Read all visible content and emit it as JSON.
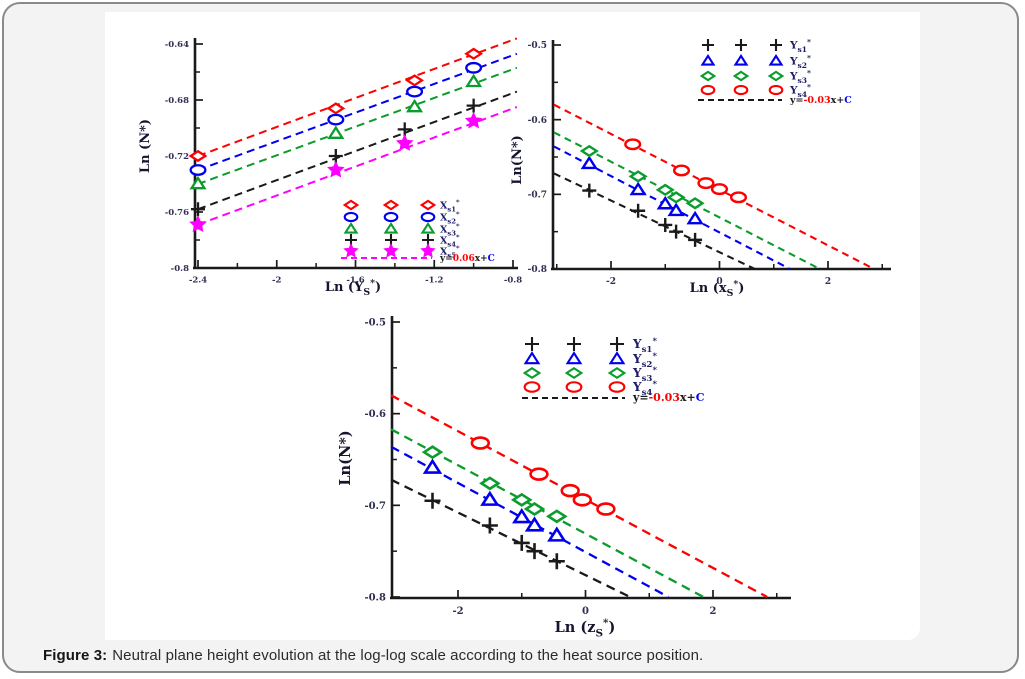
{
  "figure": {
    "caption_label": "Figure 3:",
    "caption_text": "Neutral plane height evolution at the log-log scale according to the heat source position."
  },
  "colors": {
    "red": "#fe0000",
    "blue": "#0000f0",
    "green": "#0a9c2c",
    "black": "#1a1a1a",
    "magenta": "#ff00ff",
    "axis_line": "#1a1a1a",
    "tick_text": "#2e2e52",
    "legend_text": "#1c1c66",
    "axis_label_text": "#151530",
    "card_bg": "#f2f3f2",
    "card_border": "#8a8a8a",
    "panel_bg": "#ffffff"
  },
  "chart_data": [
    {
      "type": "scatter",
      "title": "",
      "xlabel_parts": [
        [
          "Ln (Y"
        ],
        [
          "S",
          "sub"
        ],
        [
          "*",
          "sup"
        ],
        [
          ")"
        ]
      ],
      "ylabel": "Ln (N*)",
      "xlim": [
        -2.44,
        -0.76
      ],
      "ylim": [
        -0.8,
        -0.63
      ],
      "grid": false,
      "legend_position": "lower right",
      "xticks": {
        "major": [
          -2.4,
          -2,
          -1.6,
          -1.2,
          -0.8
        ],
        "labels": [
          "-2.4",
          "-2",
          "-1.6",
          "-1.2",
          "-0.8"
        ],
        "minor": [
          -2.2,
          -1.8,
          -1.4,
          -1.0
        ]
      },
      "yticks": {
        "major": [
          -0.64,
          -0.68,
          -0.72,
          -0.76,
          -0.8
        ],
        "labels": [
          "-0.64",
          "-0.68",
          "-0.72",
          "-0.76",
          "-0.8"
        ],
        "minor": [
          -0.66,
          -0.7,
          -0.74,
          -0.78
        ]
      },
      "series": [
        {
          "label_parts": [
            [
              "X"
            ],
            [
              "s1",
              "sub"
            ],
            [
              "*",
              "sup"
            ]
          ],
          "marker": "diamond",
          "color": "red",
          "x": [
            -2.4,
            -1.7,
            -1.3,
            -1.0
          ],
          "y": [
            -0.72,
            -0.686,
            -0.666,
            -0.647
          ],
          "trend": {
            "x": [
              -2.4,
              -0.78
            ],
            "y": [
              -0.72,
              -0.636
            ]
          }
        },
        {
          "label_parts": [
            [
              "X"
            ],
            [
              "s2",
              "sub"
            ],
            [
              "*",
              "sup"
            ]
          ],
          "marker": "ellipse",
          "color": "blue",
          "x": [
            -2.4,
            -1.7,
            -1.3,
            -1.0
          ],
          "y": [
            -0.73,
            -0.694,
            -0.674,
            -0.657
          ],
          "trend": {
            "x": [
              -2.4,
              -0.78
            ],
            "y": [
              -0.73,
              -0.647
            ]
          }
        },
        {
          "label_parts": [
            [
              "X"
            ],
            [
              "s3",
              "sub"
            ],
            [
              "*",
              "sup"
            ]
          ],
          "marker": "triangle",
          "color": "green",
          "x": [
            -2.4,
            -1.7,
            -1.3,
            -1.0
          ],
          "y": [
            -0.74,
            -0.704,
            -0.685,
            -0.667
          ],
          "trend": {
            "x": [
              -2.4,
              -0.78
            ],
            "y": [
              -0.74,
              -0.657
            ]
          }
        },
        {
          "label_parts": [
            [
              "X"
            ],
            [
              "s4",
              "sub"
            ],
            [
              "*",
              "sup"
            ]
          ],
          "marker": "plus",
          "color": "black",
          "x": [
            -2.4,
            -1.7,
            -1.35,
            -1.0
          ],
          "y": [
            -0.758,
            -0.72,
            -0.701,
            -0.684
          ],
          "trend": {
            "x": [
              -2.4,
              -0.78
            ],
            "y": [
              -0.758,
              -0.674
            ]
          }
        },
        {
          "label_parts": [
            [
              "X"
            ],
            [
              "s5",
              "sub"
            ],
            [
              "*",
              "sup"
            ]
          ],
          "marker": "star",
          "color": "magenta",
          "x": [
            -2.4,
            -1.7,
            -1.35,
            -1.0
          ],
          "y": [
            -0.769,
            -0.73,
            -0.711,
            -0.695
          ],
          "trend": {
            "x": [
              -2.4,
              -0.78
            ],
            "y": [
              -0.769,
              -0.685
            ]
          }
        }
      ],
      "equation": {
        "line_color": "magenta",
        "parts": [
          [
            "y=",
            "black"
          ],
          [
            "0.06",
            "red"
          ],
          [
            "x+",
            "black"
          ],
          [
            "C",
            "blue"
          ]
        ]
      }
    },
    {
      "type": "scatter",
      "title": "",
      "xlabel_parts": [
        [
          "Ln (x"
        ],
        [
          "S",
          "sub"
        ],
        [
          "*",
          "sup"
        ],
        [
          ")"
        ]
      ],
      "ylabel": "Ln(N*)",
      "xlim": [
        -3.1,
        3.15
      ],
      "ylim": [
        -0.8,
        -0.5
      ],
      "grid": false,
      "legend_position": "upper right",
      "xticks": {
        "major": [
          -2,
          0,
          2
        ],
        "labels": [
          "-2",
          "0",
          "2"
        ],
        "minor": [
          -3,
          -1,
          1,
          3
        ]
      },
      "yticks": {
        "major": [
          -0.5,
          -0.6,
          -0.7,
          -0.8
        ],
        "labels": [
          "-0.5",
          "-0.6",
          "-0.7",
          "-0.8"
        ],
        "minor": [
          -0.55,
          -0.65,
          -0.75
        ]
      },
      "series": [
        {
          "label_parts": [
            [
              "Y"
            ],
            [
              "s1",
              "sub"
            ],
            [
              "*",
              "sup"
            ]
          ],
          "marker": "plus",
          "color": "black",
          "x": [
            -2.4,
            -1.5,
            -1.0,
            -0.8,
            -0.45
          ],
          "y": [
            -0.695,
            -0.722,
            -0.741,
            -0.75,
            -0.761
          ],
          "trend": {
            "x": [
              -3.05,
              0.65
            ],
            "y": [
              -0.672,
              -0.8
            ]
          }
        },
        {
          "label_parts": [
            [
              "Y"
            ],
            [
              "s2",
              "sub"
            ],
            [
              "*",
              "sup"
            ]
          ],
          "marker": "triangle",
          "color": "blue",
          "x": [
            -2.4,
            -1.5,
            -1.0,
            -0.8,
            -0.45
          ],
          "y": [
            -0.659,
            -0.694,
            -0.713,
            -0.722,
            -0.733
          ],
          "trend": {
            "x": [
              -3.05,
              1.3
            ],
            "y": [
              -0.636,
              -0.8
            ]
          }
        },
        {
          "label_parts": [
            [
              "Y"
            ],
            [
              "s3",
              "sub"
            ],
            [
              "*",
              "sup"
            ]
          ],
          "marker": "diamond",
          "color": "green",
          "x": [
            -2.4,
            -1.5,
            -1.0,
            -0.8,
            -0.45
          ],
          "y": [
            -0.642,
            -0.676,
            -0.694,
            -0.704,
            -0.712
          ],
          "trend": {
            "x": [
              -3.05,
              1.85
            ],
            "y": [
              -0.617,
              -0.8
            ]
          }
        },
        {
          "label_parts": [
            [
              "Y"
            ],
            [
              "s4",
              "sub"
            ],
            [
              "*",
              "sup"
            ]
          ],
          "marker": "ellipse",
          "color": "red",
          "x": [
            -1.6,
            -0.7,
            -0.25,
            0.0,
            0.35
          ],
          "y": [
            -0.633,
            -0.668,
            -0.685,
            -0.693,
            -0.704
          ],
          "trend": {
            "x": [
              -3.05,
              2.85
            ],
            "y": [
              -0.58,
              -0.8
            ]
          }
        }
      ],
      "equation": {
        "line_color": "black",
        "parts": [
          [
            "y=",
            "black"
          ],
          [
            "-0.03",
            "red"
          ],
          [
            "x+",
            "black"
          ],
          [
            "C",
            "blue"
          ]
        ]
      }
    },
    {
      "type": "scatter",
      "title": "",
      "xlabel_parts": [
        [
          "Ln (z"
        ],
        [
          "S",
          "sub"
        ],
        [
          "*",
          "sup"
        ],
        [
          ")"
        ]
      ],
      "ylabel": "Ln(N*)",
      "xlim": [
        -3.1,
        3.2
      ],
      "ylim": [
        -0.8,
        -0.5
      ],
      "grid": false,
      "legend_position": "upper right",
      "xticks": {
        "major": [
          -2,
          0,
          2
        ],
        "labels": [
          "-2",
          "0",
          "2"
        ],
        "minor": [
          -1,
          1,
          3
        ]
      },
      "yticks": {
        "major": [
          -0.5,
          -0.6,
          -0.7,
          -0.8
        ],
        "labels": [
          "-0.5",
          "-0.6",
          "-0.7",
          "-0.8"
        ],
        "minor": [
          -0.55,
          -0.65,
          -0.75
        ]
      },
      "series": [
        {
          "label_parts": [
            [
              "Y"
            ],
            [
              "s1",
              "sub"
            ],
            [
              "*",
              "sup"
            ]
          ],
          "marker": "plus",
          "color": "black",
          "x": [
            -2.4,
            -1.5,
            -1.0,
            -0.8,
            -0.45
          ],
          "y": [
            -0.695,
            -0.722,
            -0.741,
            -0.75,
            -0.761
          ],
          "trend": {
            "x": [
              -3.05,
              0.7
            ],
            "y": [
              -0.672,
              -0.8
            ]
          }
        },
        {
          "label_parts": [
            [
              "Y"
            ],
            [
              "s2",
              "sub"
            ],
            [
              "*",
              "sup"
            ]
          ],
          "marker": "triangle",
          "color": "blue",
          "x": [
            -2.4,
            -1.5,
            -1.0,
            -0.8,
            -0.45
          ],
          "y": [
            -0.659,
            -0.694,
            -0.713,
            -0.722,
            -0.733
          ],
          "trend": {
            "x": [
              -3.05,
              1.3
            ],
            "y": [
              -0.636,
              -0.8
            ]
          }
        },
        {
          "label_parts": [
            [
              "Y"
            ],
            [
              "s3",
              "sub"
            ],
            [
              "*",
              "sup"
            ]
          ],
          "marker": "diamond",
          "color": "green",
          "x": [
            -2.4,
            -1.5,
            -1.0,
            -0.8,
            -0.45
          ],
          "y": [
            -0.642,
            -0.676,
            -0.694,
            -0.704,
            -0.712
          ],
          "trend": {
            "x": [
              -3.05,
              1.85
            ],
            "y": [
              -0.617,
              -0.8
            ]
          }
        },
        {
          "label_parts": [
            [
              "Y"
            ],
            [
              "s4",
              "sub"
            ],
            [
              "*",
              "sup"
            ]
          ],
          "marker": "ellipse",
          "color": "red",
          "x": [
            -1.65,
            -0.73,
            -0.24,
            -0.05,
            0.32
          ],
          "y": [
            -0.632,
            -0.666,
            -0.684,
            -0.694,
            -0.704
          ],
          "trend": {
            "x": [
              -3.05,
              2.85
            ],
            "y": [
              -0.58,
              -0.8
            ]
          }
        }
      ],
      "equation": {
        "line_color": "black",
        "parts": [
          [
            "y=",
            "black"
          ],
          [
            "-0.03",
            "red"
          ],
          [
            "x+",
            "black"
          ],
          [
            "C",
            "blue"
          ]
        ]
      }
    }
  ]
}
